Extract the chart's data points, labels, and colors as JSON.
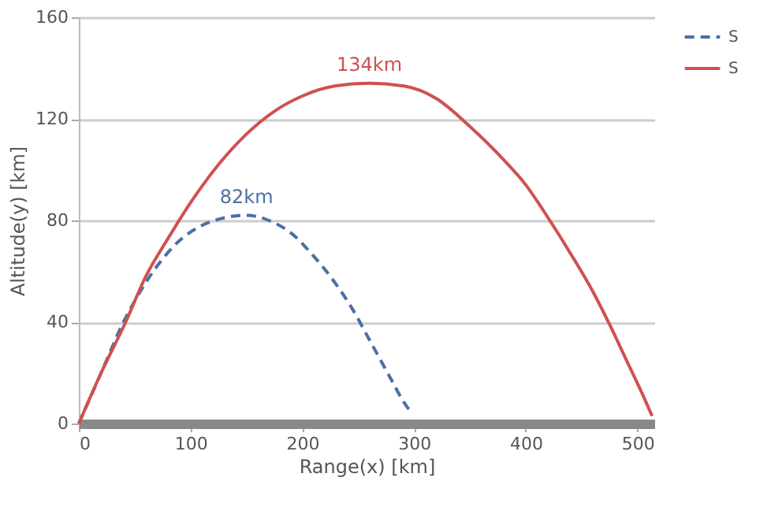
{
  "chart_data": {
    "type": "line",
    "xlabel": "Range(x) [km]",
    "ylabel": "Altitude(y) [km]",
    "xlim": [
      0,
      515
    ],
    "xticks": [
      0,
      100,
      200,
      300,
      400,
      500
    ],
    "ylim": [
      0,
      160
    ],
    "yticks": [
      0,
      40,
      80,
      120,
      160
    ],
    "grid": "y",
    "legend": "right",
    "series": [
      {
        "name": "S",
        "color": "#4a6fa5",
        "line_style": "dashed",
        "x": [
          0,
          20,
          40,
          55,
          70,
          90,
          110,
          130,
          150,
          170,
          190,
          210,
          230,
          245,
          260,
          270,
          280,
          290,
          298
        ],
        "values": [
          0,
          20,
          40,
          52,
          62,
          72,
          78,
          81,
          82,
          80,
          75,
          66,
          55,
          45,
          33,
          25,
          17,
          9,
          4
        ]
      },
      {
        "name": "S",
        "color": "#d05050",
        "line_style": "solid",
        "x": [
          0,
          20,
          42,
          60,
          80,
          100,
          125,
          150,
          175,
          200,
          230,
          260,
          290,
          320,
          350,
          380,
          400,
          420,
          440,
          460,
          475,
          490,
          505,
          513
        ],
        "values": [
          0,
          20,
          40,
          58,
          73,
          87,
          102,
          114,
          123,
          129,
          133,
          134,
          133,
          128,
          117,
          104,
          94,
          81,
          67,
          52,
          39,
          25,
          11,
          3
        ]
      }
    ],
    "annotations": [
      {
        "text": "82km",
        "x": 150,
        "y": 82
      },
      {
        "text": "134km",
        "x": 260,
        "y": 134
      }
    ]
  }
}
